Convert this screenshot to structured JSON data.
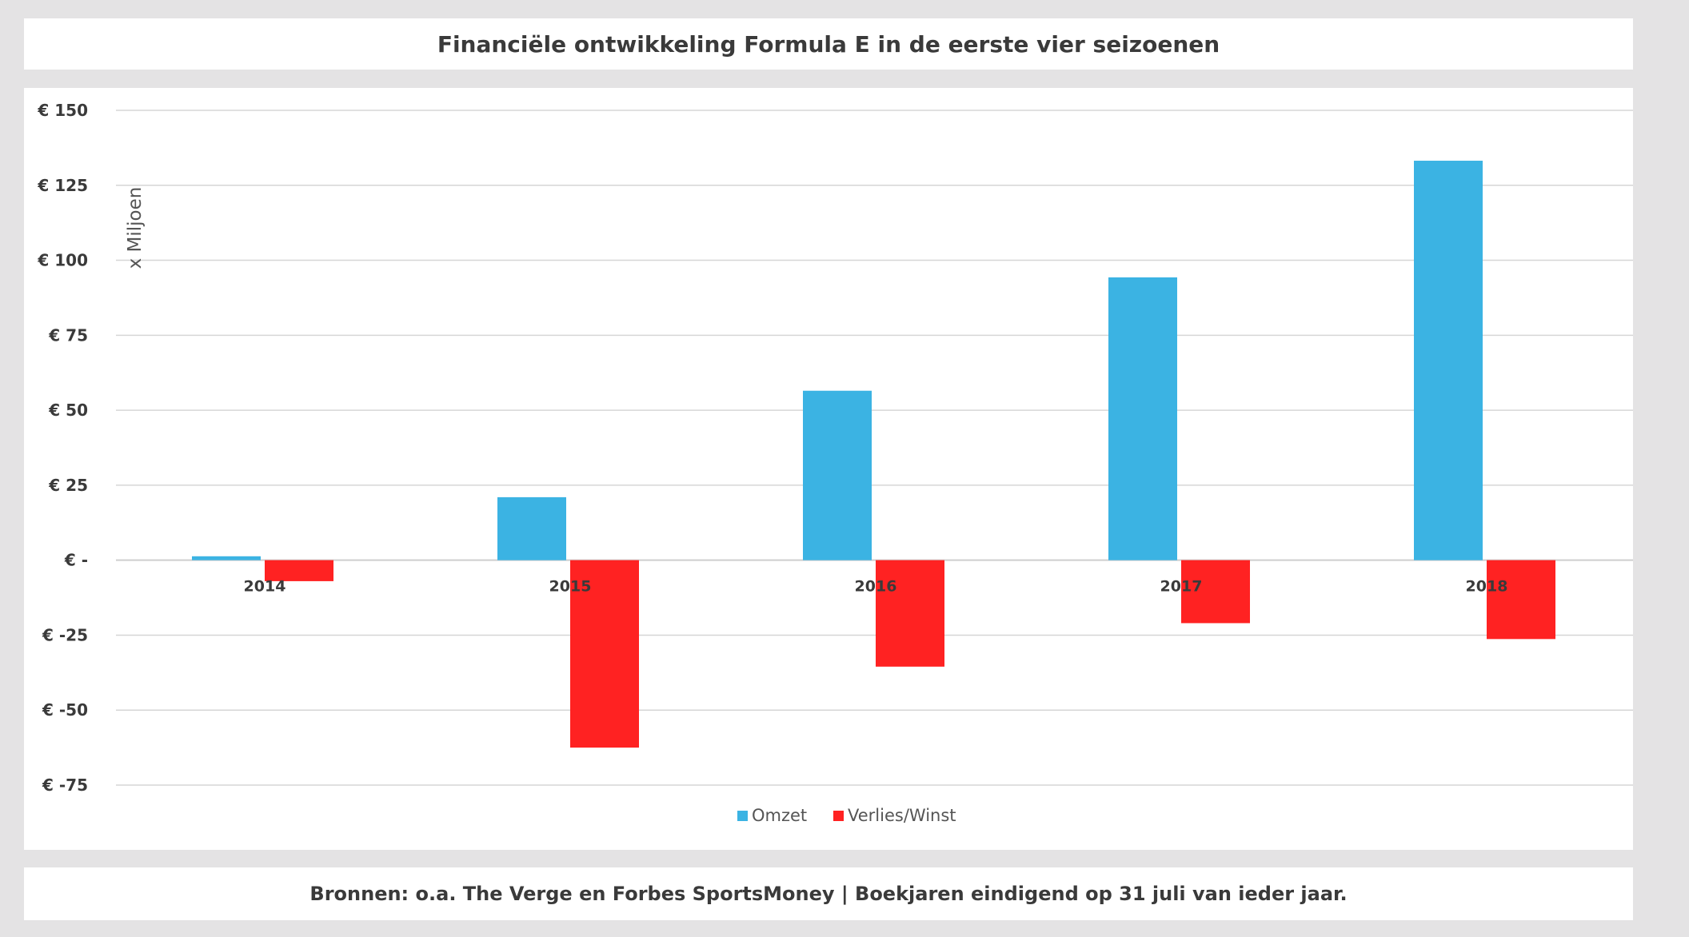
{
  "header": {
    "title": "Financiële ontwikkeling Formula E in de eerste vier seizoenen"
  },
  "footer": {
    "text": "Bronnen: o.a. The Verge en Forbes SportsMoney | Boekjaren eindigend op 31 juli van ieder jaar."
  },
  "chart_data": {
    "type": "bar",
    "title": "Financiële ontwikkeling Formula E in de eerste vier seizoenen",
    "ylabel": "x Miljoen",
    "xlabel": "",
    "categories": [
      "2014",
      "2015",
      "2016",
      "2017",
      "2018"
    ],
    "series": [
      {
        "name": "Omzet",
        "color": "#3bb3e3",
        "values": [
          1.3,
          21,
          56.5,
          94.3,
          133.2
        ]
      },
      {
        "name": "Verlies/Winst",
        "color": "#ff2222",
        "values": [
          -7,
          -62.5,
          -35.5,
          -21,
          -26.3
        ]
      }
    ],
    "ylim": [
      -75,
      150
    ],
    "yticks": [
      150,
      125,
      100,
      75,
      50,
      25,
      0,
      -25,
      -50,
      -75
    ],
    "ytick_labels": [
      "€ 150",
      "€ 125",
      "€ 100",
      "€ 75",
      "€ 50",
      "€ 25",
      "€ -",
      "€ -25",
      "€ -50",
      "€ -75"
    ],
    "grid": true,
    "legend": "bottom-center"
  }
}
